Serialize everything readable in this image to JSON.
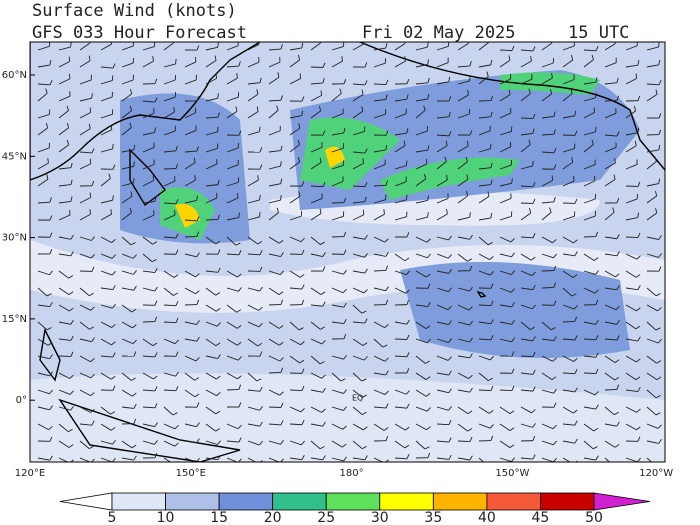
{
  "header": {
    "title": "Surface Wind (knots)",
    "subtitle": "GFS 033 Hour Forecast",
    "date": "Fri 02 May 2025",
    "time": "15 UTC"
  },
  "map": {
    "lat_labels": [
      "60°N",
      "45°N",
      "30°N",
      "15°N",
      "0°"
    ],
    "lon_labels": [
      "120°E",
      "150°E",
      "180°",
      "150°W",
      "120°W"
    ],
    "annotations": [
      "EQ"
    ]
  },
  "colorbar": {
    "labels": [
      "5",
      "10",
      "15",
      "20",
      "25",
      "30",
      "35",
      "40",
      "45",
      "50"
    ],
    "colors": [
      "#ffffff",
      "#dfe6f5",
      "#aebfe8",
      "#6f8fd9",
      "#2fc08c",
      "#5fe05a",
      "#ffff00",
      "#ffb400",
      "#f45a3a",
      "#c80000",
      "#d020d0"
    ]
  }
}
